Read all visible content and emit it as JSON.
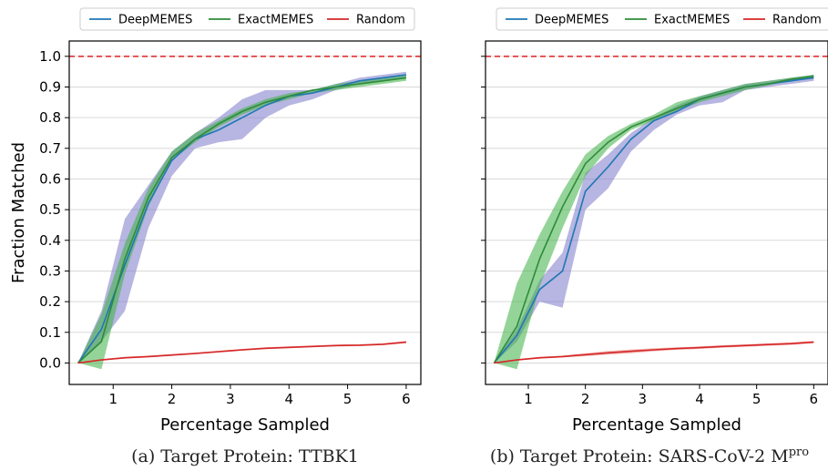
{
  "reference_line": {
    "value": 1.0,
    "color": "#e02020"
  },
  "chart_data": [
    {
      "type": "line",
      "caption": "(a) Target Protein: TTBK1",
      "xlabel": "Percentage Sampled",
      "ylabel": "Fraction Matched",
      "xlim": [
        0.25,
        6.25
      ],
      "ylim": [
        -0.07,
        1.05
      ],
      "xticks": [
        1,
        2,
        3,
        4,
        5,
        6
      ],
      "yticks": [
        0.0,
        0.1,
        0.2,
        0.3,
        0.4,
        0.5,
        0.6,
        0.7,
        0.8,
        0.9,
        1.0
      ],
      "ytick_labels": [
        "0.0",
        "0.1",
        "0.2",
        "0.3",
        "0.4",
        "0.5",
        "0.6",
        "0.7",
        "0.8",
        "0.9",
        "1.0"
      ],
      "grid": "horizontal",
      "legend_position": "top",
      "series": [
        {
          "name": "DeepMEMES",
          "color": "#1f77b4",
          "band_color": "#7b78c8",
          "x": [
            0.4,
            0.8,
            1.2,
            1.6,
            2.0,
            2.4,
            2.8,
            3.2,
            3.6,
            4.0,
            4.4,
            4.8,
            5.2,
            5.6,
            6.0
          ],
          "y": [
            0.0,
            0.11,
            0.32,
            0.52,
            0.66,
            0.73,
            0.76,
            0.8,
            0.84,
            0.87,
            0.88,
            0.9,
            0.92,
            0.93,
            0.94
          ],
          "lower": [
            0.0,
            0.07,
            0.17,
            0.44,
            0.61,
            0.7,
            0.72,
            0.73,
            0.8,
            0.84,
            0.86,
            0.89,
            0.91,
            0.92,
            0.93
          ],
          "upper": [
            0.0,
            0.17,
            0.47,
            0.58,
            0.69,
            0.75,
            0.8,
            0.86,
            0.89,
            0.89,
            0.89,
            0.91,
            0.93,
            0.94,
            0.95
          ]
        },
        {
          "name": "ExactMEMES",
          "color": "#2e8b3a",
          "band_color": "#3cb043",
          "x": [
            0.4,
            0.8,
            1.2,
            1.6,
            2.0,
            2.4,
            2.8,
            3.2,
            3.6,
            4.0,
            4.4,
            4.8,
            5.2,
            5.6,
            6.0
          ],
          "y": [
            0.0,
            0.07,
            0.34,
            0.54,
            0.67,
            0.73,
            0.78,
            0.82,
            0.85,
            0.87,
            0.89,
            0.9,
            0.91,
            0.92,
            0.93
          ],
          "lower": [
            0.0,
            -0.02,
            0.29,
            0.51,
            0.66,
            0.72,
            0.77,
            0.81,
            0.84,
            0.86,
            0.88,
            0.89,
            0.9,
            0.91,
            0.92
          ],
          "upper": [
            0.0,
            0.16,
            0.39,
            0.57,
            0.69,
            0.75,
            0.79,
            0.83,
            0.86,
            0.88,
            0.89,
            0.91,
            0.92,
            0.93,
            0.94
          ]
        },
        {
          "name": "Random",
          "color": "#d62728",
          "band_color": "#e8807a",
          "x": [
            0.4,
            0.8,
            1.2,
            1.6,
            2.0,
            2.4,
            2.8,
            3.2,
            3.6,
            4.0,
            4.4,
            4.8,
            5.2,
            5.6,
            6.0
          ],
          "y": [
            0.0,
            0.01,
            0.017,
            0.021,
            0.026,
            0.031,
            0.037,
            0.043,
            0.048,
            0.051,
            0.054,
            0.057,
            0.058,
            0.061,
            0.068
          ],
          "lower": [
            0.0,
            0.008,
            0.014,
            0.018,
            0.023,
            0.028,
            0.034,
            0.04,
            0.045,
            0.048,
            0.051,
            0.054,
            0.055,
            0.058,
            0.064
          ],
          "upper": [
            0.0,
            0.012,
            0.02,
            0.024,
            0.029,
            0.034,
            0.04,
            0.046,
            0.051,
            0.054,
            0.057,
            0.06,
            0.061,
            0.064,
            0.072
          ]
        }
      ]
    },
    {
      "type": "line",
      "caption": "(b) Target Protein: SARS-CoV-2 M",
      "caption_sup": "pro",
      "xlabel": "Percentage Sampled",
      "ylabel": "",
      "xlim": [
        0.25,
        6.25
      ],
      "ylim": [
        -0.07,
        1.05
      ],
      "xticks": [
        1,
        2,
        3,
        4,
        5,
        6
      ],
      "yticks": [
        0.0,
        0.1,
        0.2,
        0.3,
        0.4,
        0.5,
        0.6,
        0.7,
        0.8,
        0.9,
        1.0
      ],
      "ytick_labels": [],
      "grid": "horizontal",
      "legend_position": "top",
      "series": [
        {
          "name": "DeepMEMES",
          "color": "#1f77b4",
          "band_color": "#7b78c8",
          "x": [
            0.4,
            0.8,
            1.2,
            1.6,
            2.0,
            2.4,
            2.8,
            3.2,
            3.6,
            4.0,
            4.4,
            4.8,
            5.2,
            5.6,
            6.0
          ],
          "y": [
            0.0,
            0.09,
            0.24,
            0.3,
            0.56,
            0.64,
            0.73,
            0.79,
            0.82,
            0.86,
            0.88,
            0.9,
            0.91,
            0.92,
            0.93
          ],
          "lower": [
            0.0,
            0.07,
            0.2,
            0.18,
            0.5,
            0.57,
            0.69,
            0.76,
            0.81,
            0.84,
            0.85,
            0.89,
            0.9,
            0.91,
            0.92
          ],
          "upper": [
            0.0,
            0.11,
            0.27,
            0.36,
            0.62,
            0.68,
            0.75,
            0.8,
            0.84,
            0.87,
            0.89,
            0.91,
            0.92,
            0.93,
            0.94
          ]
        },
        {
          "name": "ExactMEMES",
          "color": "#2e8b3a",
          "band_color": "#3cb043",
          "x": [
            0.4,
            0.8,
            1.2,
            1.6,
            2.0,
            2.4,
            2.8,
            3.2,
            3.6,
            4.0,
            4.4,
            4.8,
            5.2,
            5.6,
            6.0
          ],
          "y": [
            0.0,
            0.12,
            0.34,
            0.51,
            0.65,
            0.72,
            0.77,
            0.8,
            0.83,
            0.86,
            0.88,
            0.9,
            0.91,
            0.925,
            0.935
          ],
          "lower": [
            0.0,
            -0.02,
            0.25,
            0.44,
            0.61,
            0.7,
            0.76,
            0.79,
            0.82,
            0.85,
            0.87,
            0.89,
            0.905,
            0.92,
            0.93
          ],
          "upper": [
            0.0,
            0.26,
            0.42,
            0.56,
            0.68,
            0.74,
            0.78,
            0.81,
            0.85,
            0.87,
            0.89,
            0.91,
            0.92,
            0.93,
            0.94
          ]
        },
        {
          "name": "Random",
          "color": "#d62728",
          "band_color": "#e8807a",
          "x": [
            0.4,
            0.8,
            1.2,
            1.6,
            2.0,
            2.4,
            2.8,
            3.2,
            3.6,
            4.0,
            4.4,
            4.8,
            5.2,
            5.6,
            6.0
          ],
          "y": [
            0.0,
            0.01,
            0.017,
            0.021,
            0.027,
            0.033,
            0.038,
            0.043,
            0.047,
            0.05,
            0.054,
            0.057,
            0.06,
            0.063,
            0.068
          ],
          "lower": [
            0.0,
            0.008,
            0.014,
            0.018,
            0.022,
            0.027,
            0.032,
            0.038,
            0.043,
            0.046,
            0.05,
            0.053,
            0.056,
            0.059,
            0.064
          ],
          "upper": [
            0.0,
            0.012,
            0.02,
            0.024,
            0.032,
            0.039,
            0.044,
            0.048,
            0.051,
            0.054,
            0.058,
            0.061,
            0.064,
            0.067,
            0.072
          ]
        }
      ]
    }
  ]
}
